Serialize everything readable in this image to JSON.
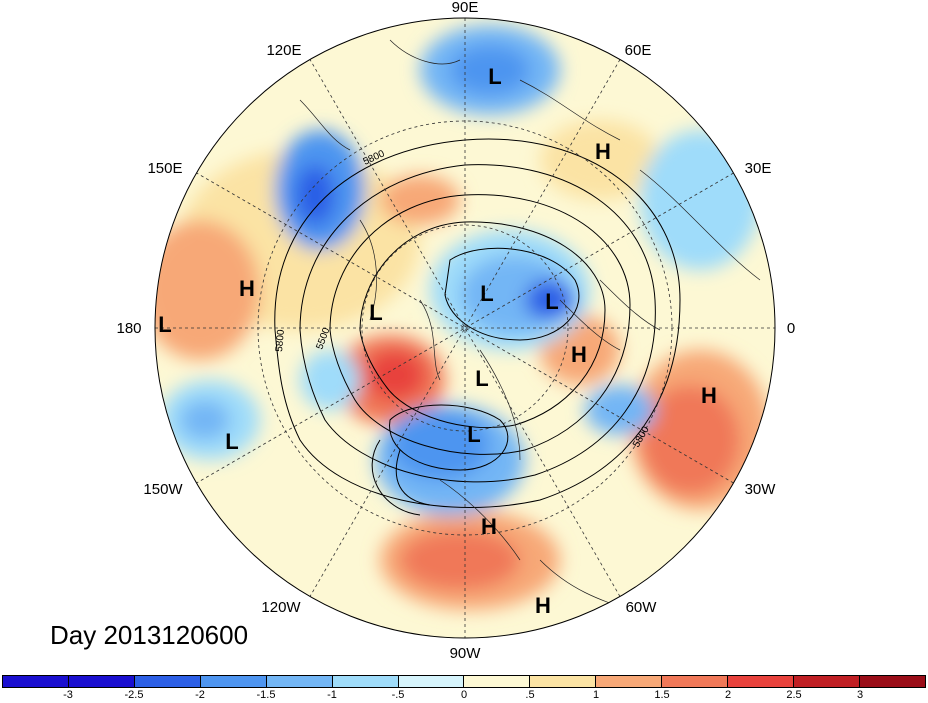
{
  "date_label": "Day 2013120600",
  "longitude_labels": [
    "90E",
    "60E",
    "30E",
    "0",
    "30W",
    "60W",
    "90W",
    "120W",
    "150W",
    "180",
    "150E",
    "120E"
  ],
  "colorbar": {
    "colors": [
      "#1a0fd0",
      "#2c5fe6",
      "#4e95f0",
      "#73b6f5",
      "#9fdcfa",
      "#d6f4fc",
      "#fdf8d4",
      "#fbe3a4",
      "#f7a877",
      "#f07858",
      "#e8423c",
      "#c01f24",
      "#9a0d18"
    ],
    "ticks": [
      "-3",
      "-2.5",
      "-2",
      "-1.5",
      "-1",
      "-.5",
      "0",
      ".5",
      "1",
      "1.5",
      "2",
      "2.5",
      "3"
    ]
  },
  "contour_labels": [
    "5800",
    "5500",
    "5800",
    "5800"
  ],
  "systems": [
    {
      "label": "L"
    },
    {
      "label": "H"
    },
    {
      "label": "L"
    },
    {
      "label": "H"
    },
    {
      "label": "L"
    },
    {
      "label": "L"
    },
    {
      "label": "L"
    },
    {
      "label": "H"
    },
    {
      "label": "L"
    },
    {
      "label": "H"
    },
    {
      "label": "L"
    },
    {
      "label": "L"
    },
    {
      "label": "H"
    },
    {
      "label": "H"
    }
  ]
}
